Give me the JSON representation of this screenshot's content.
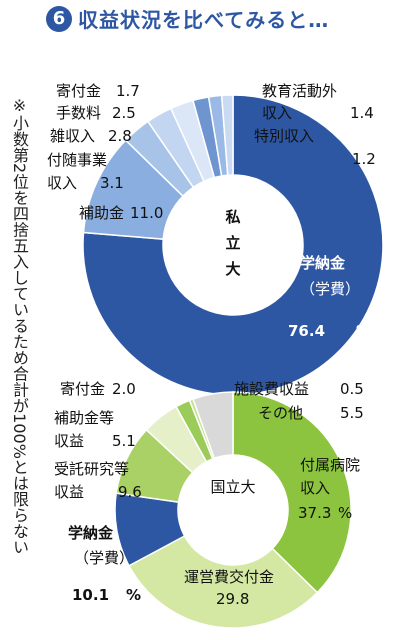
{
  "header": {
    "badge": "6",
    "title": "収益状況を比べてみると…"
  },
  "note": "※小数第2位を四捨五入しているため合計が100%とは限らない",
  "chart_data": [
    {
      "type": "pie",
      "center_label": "私立大",
      "slices": [
        {
          "name": "学納金（学費）",
          "label": "学納金",
          "sublabel": "（学費）",
          "value": 76.4,
          "value_label": "76.4",
          "unit": "%",
          "color": "#2e57a3"
        },
        {
          "name": "補助金",
          "label": "補助金",
          "value": 11.0,
          "value_label": "11.0",
          "color": "#8aaee0"
        },
        {
          "name": "付随事業収入",
          "label": "付随事業",
          "label2": "収入",
          "value": 3.1,
          "value_label": "3.1",
          "color": "#a8c3e8"
        },
        {
          "name": "雑収入",
          "label": "雑収入",
          "value": 2.8,
          "value_label": "2.8",
          "color": "#c3d6f1"
        },
        {
          "name": "手数料",
          "label": "手数料",
          "value": 2.5,
          "value_label": "2.5",
          "color": "#dbe6f6"
        },
        {
          "name": "寄付金",
          "label": "寄付金",
          "value": 1.7,
          "value_label": "1.7",
          "color": "#6f95d1"
        },
        {
          "name": "教育活動外収入",
          "label": "教育活動外",
          "label2": "収入",
          "value": 1.4,
          "value_label": "1.4",
          "color": "#9bb9e6"
        },
        {
          "name": "特別収入",
          "label": "特別収入",
          "value": 1.2,
          "value_label": "1.2",
          "color": "#c9daf2"
        }
      ]
    },
    {
      "type": "pie",
      "center_label": "国立大",
      "slices": [
        {
          "name": "付属病院収入",
          "label": "付属病院",
          "label2": "収入",
          "value": 37.3,
          "value_label": "37.3",
          "unit": "%",
          "color": "#8cc43f"
        },
        {
          "name": "運営費交付金",
          "label": "運営費交付金",
          "value": 29.8,
          "value_label": "29.8",
          "color": "#d4e7a3"
        },
        {
          "name": "学納金（学費）",
          "label": "学納金",
          "sublabel": "（学費）",
          "value": 10.1,
          "value_label": "10.1",
          "unit": "%",
          "color": "#2e57a3"
        },
        {
          "name": "受託研究等収益",
          "label": "受託研究等",
          "label2": "収益",
          "value": 9.6,
          "value_label": "9.6",
          "color": "#a9d166"
        },
        {
          "name": "補助金等収益",
          "label": "補助金等",
          "label2": "収益",
          "value": 5.1,
          "value_label": "5.1",
          "color": "#e6f0c8"
        },
        {
          "name": "寄付金",
          "label": "寄付金",
          "value": 2.0,
          "value_label": "2.0",
          "color": "#9bcc5a"
        },
        {
          "name": "施設費収益",
          "label": "施設費収益",
          "value": 0.5,
          "value_label": "0.5",
          "color": "#c6e08e"
        },
        {
          "name": "その他",
          "label": "その他",
          "value": 5.5,
          "value_label": "5.5",
          "color": "#d9d9d9"
        }
      ]
    }
  ]
}
